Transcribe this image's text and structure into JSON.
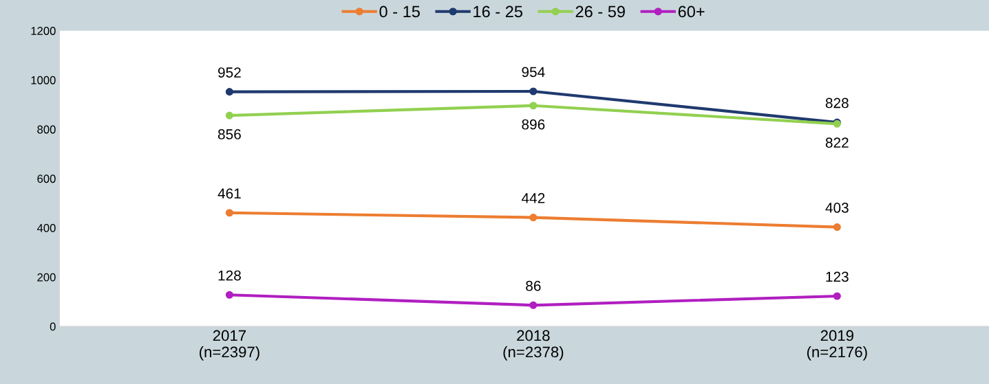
{
  "chart_data": {
    "type": "line",
    "categories": [
      "2017\n(n=2397)",
      "2018\n(n=2378)",
      "2019\n(n=2176)"
    ],
    "series": [
      {
        "name": "0 - 15",
        "color": "#ed7d31",
        "values": [
          461,
          442,
          403
        ]
      },
      {
        "name": "16 - 25",
        "color": "#1f3a6e",
        "values": [
          952,
          954,
          828
        ]
      },
      {
        "name": "26 - 59",
        "color": "#92d050",
        "values": [
          856,
          896,
          822
        ]
      },
      {
        "name": "60+",
        "color": "#b01fc0",
        "values": [
          128,
          86,
          123
        ]
      }
    ],
    "ylim": [
      0,
      1200
    ],
    "yticks": [
      0,
      200,
      400,
      600,
      800,
      1000,
      1200
    ],
    "grid": false,
    "legend": "top",
    "marker": "circle",
    "line_style": "solid",
    "data_labels": true
  }
}
